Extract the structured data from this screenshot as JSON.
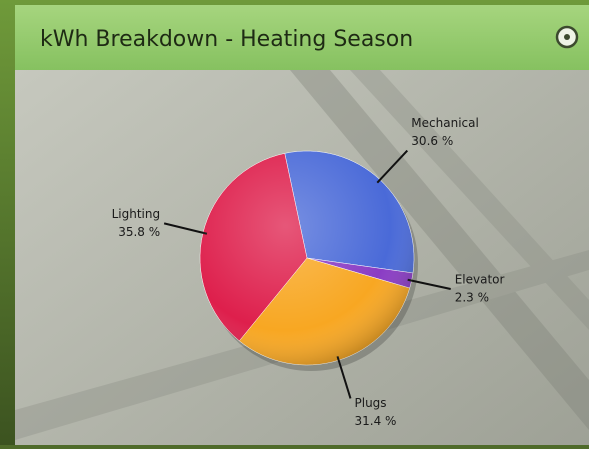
{
  "chart_data": {
    "type": "pie",
    "title": "kWh Breakdown - Heating Season",
    "categories": [
      "Mechanical",
      "Elevator",
      "Plugs",
      "Lighting"
    ],
    "values": [
      30.6,
      2.3,
      31.4,
      35.8
    ],
    "value_labels": [
      "30.6 %",
      "2.3 %",
      "31.4 %",
      "35.8 %"
    ],
    "colors": [
      "#4a6ad8",
      "#8a3cc4",
      "#f8a722",
      "#de1f4c"
    ]
  }
}
